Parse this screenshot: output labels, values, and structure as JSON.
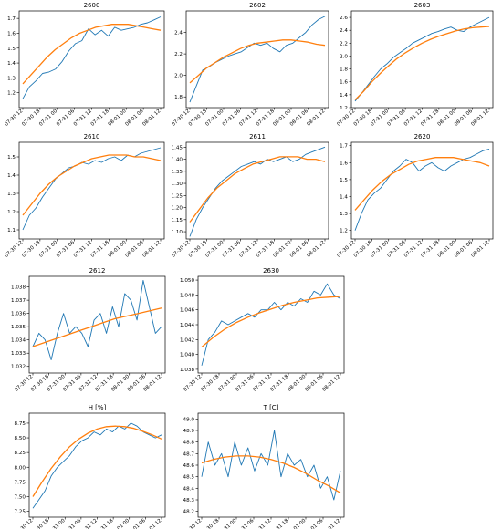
{
  "figure": {
    "colors": {
      "data_line": "#1f77b4",
      "fit_line": "#ff7f0e",
      "axes": "#000000",
      "background": "#ffffff"
    },
    "x_tick_labels": [
      "07-30 12",
      "07-30 18",
      "07-31 00",
      "07-31 06",
      "07-31 12",
      "07-31 18",
      "08-01 00",
      "08-01 06",
      "08-01 12"
    ]
  },
  "chart_data": [
    {
      "type": "line",
      "title": "2600",
      "grid": false,
      "x_range": [
        "07-30 12",
        "08-01 12"
      ],
      "ylim": [
        1.1,
        1.75
      ],
      "yticks": [
        "1.2",
        "1.3",
        "1.4",
        "1.5",
        "1.6",
        "1.7"
      ],
      "series": [
        {
          "values": [
            1.16,
            1.24,
            1.28,
            1.33,
            1.34,
            1.36,
            1.41,
            1.48,
            1.53,
            1.55,
            1.63,
            1.59,
            1.62,
            1.58,
            1.64,
            1.62,
            1.63,
            1.64,
            1.66,
            1.67,
            1.69,
            1.71
          ]
        },
        {
          "values": [
            1.26,
            1.32,
            1.38,
            1.44,
            1.49,
            1.53,
            1.57,
            1.6,
            1.62,
            1.64,
            1.65,
            1.66,
            1.66,
            1.66,
            1.65,
            1.64,
            1.63,
            1.62
          ]
        }
      ]
    },
    {
      "type": "line",
      "title": "2602",
      "grid": false,
      "x_range": [
        "07-30 12",
        "08-01 12"
      ],
      "ylim": [
        1.7,
        2.6
      ],
      "yticks": [
        "1.8",
        "2.0",
        "2.2",
        "2.4"
      ],
      "series": [
        {
          "values": [
            1.75,
            1.9,
            2.05,
            2.08,
            2.12,
            2.15,
            2.18,
            2.2,
            2.22,
            2.26,
            2.3,
            2.28,
            2.3,
            2.25,
            2.22,
            2.28,
            2.3,
            2.35,
            2.4,
            2.47,
            2.52,
            2.55
          ]
        },
        {
          "values": [
            1.93,
            2.0,
            2.07,
            2.12,
            2.17,
            2.21,
            2.25,
            2.28,
            2.3,
            2.31,
            2.32,
            2.33,
            2.33,
            2.32,
            2.31,
            2.29,
            2.28
          ]
        }
      ]
    },
    {
      "type": "line",
      "title": "2603",
      "grid": false,
      "x_range": [
        "07-30 12",
        "08-01 12"
      ],
      "ylim": [
        1.2,
        2.7
      ],
      "yticks": [
        "1.2",
        "1.4",
        "1.6",
        "1.8",
        "2.0",
        "2.2",
        "2.4",
        "2.6"
      ],
      "series": [
        {
          "values": [
            1.3,
            1.42,
            1.55,
            1.68,
            1.8,
            1.88,
            1.98,
            2.05,
            2.12,
            2.2,
            2.25,
            2.3,
            2.35,
            2.38,
            2.42,
            2.45,
            2.4,
            2.38,
            2.45,
            2.5,
            2.55,
            2.6
          ]
        },
        {
          "values": [
            1.32,
            1.45,
            1.6,
            1.73,
            1.85,
            1.96,
            2.05,
            2.13,
            2.2,
            2.26,
            2.31,
            2.35,
            2.39,
            2.42,
            2.44,
            2.45,
            2.46
          ]
        }
      ]
    },
    {
      "type": "line",
      "title": "2610",
      "grid": false,
      "x_range": [
        "07-30 12",
        "08-01 12"
      ],
      "ylim": [
        1.05,
        1.58
      ],
      "yticks": [
        "1.1",
        "1.2",
        "1.3",
        "1.4",
        "1.5"
      ],
      "series": [
        {
          "values": [
            1.1,
            1.18,
            1.22,
            1.28,
            1.33,
            1.38,
            1.41,
            1.44,
            1.45,
            1.47,
            1.46,
            1.48,
            1.47,
            1.49,
            1.5,
            1.48,
            1.51,
            1.5,
            1.52,
            1.53,
            1.54,
            1.55
          ]
        },
        {
          "values": [
            1.18,
            1.24,
            1.3,
            1.35,
            1.39,
            1.42,
            1.45,
            1.47,
            1.49,
            1.5,
            1.51,
            1.51,
            1.51,
            1.5,
            1.5,
            1.49,
            1.48
          ]
        }
      ]
    },
    {
      "type": "line",
      "title": "2611",
      "grid": false,
      "x_range": [
        "07-30 12",
        "08-01 12"
      ],
      "ylim": [
        1.07,
        1.47
      ],
      "yticks": [
        "1.10",
        "1.15",
        "1.20",
        "1.25",
        "1.30",
        "1.35",
        "1.40",
        "1.45"
      ],
      "series": [
        {
          "values": [
            1.08,
            1.15,
            1.2,
            1.24,
            1.28,
            1.31,
            1.33,
            1.35,
            1.37,
            1.38,
            1.39,
            1.38,
            1.4,
            1.39,
            1.4,
            1.41,
            1.39,
            1.4,
            1.42,
            1.43,
            1.44,
            1.45
          ]
        },
        {
          "values": [
            1.14,
            1.19,
            1.24,
            1.28,
            1.31,
            1.34,
            1.36,
            1.38,
            1.39,
            1.4,
            1.41,
            1.41,
            1.41,
            1.4,
            1.4,
            1.39
          ]
        }
      ]
    },
    {
      "type": "line",
      "title": "2620",
      "grid": false,
      "x_range": [
        "07-30 12",
        "08-01 12"
      ],
      "ylim": [
        1.15,
        1.72
      ],
      "yticks": [
        "1.2",
        "1.3",
        "1.4",
        "1.5",
        "1.6",
        "1.7"
      ],
      "series": [
        {
          "values": [
            1.2,
            1.3,
            1.38,
            1.42,
            1.45,
            1.5,
            1.55,
            1.58,
            1.62,
            1.6,
            1.55,
            1.58,
            1.6,
            1.57,
            1.55,
            1.58,
            1.6,
            1.62,
            1.63,
            1.65,
            1.67,
            1.68
          ]
        },
        {
          "values": [
            1.32,
            1.38,
            1.44,
            1.49,
            1.53,
            1.56,
            1.59,
            1.61,
            1.62,
            1.63,
            1.63,
            1.63,
            1.62,
            1.61,
            1.6,
            1.58
          ]
        }
      ]
    },
    {
      "type": "line",
      "title": "2612",
      "grid": false,
      "x_range": [
        "07-30 12",
        "08-01 12"
      ],
      "ylim": [
        1.0315,
        1.0388
      ],
      "yticks": [
        "1.032",
        "1.033",
        "1.034",
        "1.035",
        "1.036",
        "1.037",
        "1.038"
      ],
      "series": [
        {
          "values": [
            1.0335,
            1.0345,
            1.034,
            1.0325,
            1.0345,
            1.036,
            1.0345,
            1.035,
            1.0345,
            1.0335,
            1.0355,
            1.036,
            1.0345,
            1.0365,
            1.035,
            1.0375,
            1.037,
            1.0355,
            1.0385,
            1.0365,
            1.0345,
            1.035
          ]
        },
        {
          "values": [
            1.0335,
            1.0338,
            1.0341,
            1.0344,
            1.0347,
            1.035,
            1.0353,
            1.0356,
            1.0358,
            1.036,
            1.0362,
            1.0364
          ]
        }
      ]
    },
    {
      "type": "line",
      "title": "2630",
      "grid": false,
      "x_range": [
        "07-30 12",
        "08-01 12"
      ],
      "ylim": [
        1.0375,
        1.0505
      ],
      "yticks": [
        "1.038",
        "1.040",
        "1.042",
        "1.044",
        "1.046",
        "1.048",
        "1.050"
      ],
      "series": [
        {
          "values": [
            1.0385,
            1.042,
            1.043,
            1.0445,
            1.044,
            1.0445,
            1.045,
            1.0455,
            1.045,
            1.046,
            1.046,
            1.047,
            1.046,
            1.047,
            1.0465,
            1.0475,
            1.047,
            1.0485,
            1.048,
            1.0495,
            1.048,
            1.0475
          ]
        },
        {
          "values": [
            1.041,
            1.0423,
            1.0434,
            1.0443,
            1.045,
            1.0456,
            1.0461,
            1.0466,
            1.047,
            1.0473,
            1.0476,
            1.0477,
            1.0478
          ]
        }
      ]
    },
    {
      "type": "line",
      "title": "H [%]",
      "grid": false,
      "x_range": [
        "07-30 12",
        "08-01 12"
      ],
      "ylim": [
        7.15,
        8.92
      ],
      "yticks": [
        "7.25",
        "7.50",
        "7.75",
        "8.00",
        "8.25",
        "8.50",
        "8.75"
      ],
      "series": [
        {
          "values": [
            7.3,
            7.45,
            7.6,
            7.85,
            8.0,
            8.1,
            8.2,
            8.35,
            8.45,
            8.5,
            8.6,
            8.55,
            8.65,
            8.6,
            8.7,
            8.65,
            8.75,
            8.7,
            8.6,
            8.55,
            8.5,
            8.55
          ]
        },
        {
          "values": [
            7.5,
            7.75,
            7.98,
            8.18,
            8.35,
            8.48,
            8.58,
            8.65,
            8.69,
            8.7,
            8.69,
            8.66,
            8.61,
            8.55,
            8.48
          ]
        }
      ]
    },
    {
      "type": "line",
      "title": "T [C]",
      "grid": false,
      "x_range": [
        "07-30 12",
        "08-01 12"
      ],
      "ylim": [
        48.15,
        49.05
      ],
      "yticks": [
        "48.2",
        "48.3",
        "48.4",
        "48.5",
        "48.6",
        "48.7",
        "48.8",
        "48.9",
        "49.0"
      ],
      "series": [
        {
          "values": [
            48.5,
            48.8,
            48.6,
            48.7,
            48.5,
            48.8,
            48.6,
            48.75,
            48.55,
            48.7,
            48.6,
            48.9,
            48.5,
            48.7,
            48.6,
            48.65,
            48.5,
            48.6,
            48.4,
            48.5,
            48.3,
            48.55
          ]
        },
        {
          "values": [
            48.62,
            48.65,
            48.67,
            48.68,
            48.68,
            48.67,
            48.65,
            48.62,
            48.58,
            48.53,
            48.47,
            48.42,
            48.36
          ]
        }
      ]
    }
  ]
}
